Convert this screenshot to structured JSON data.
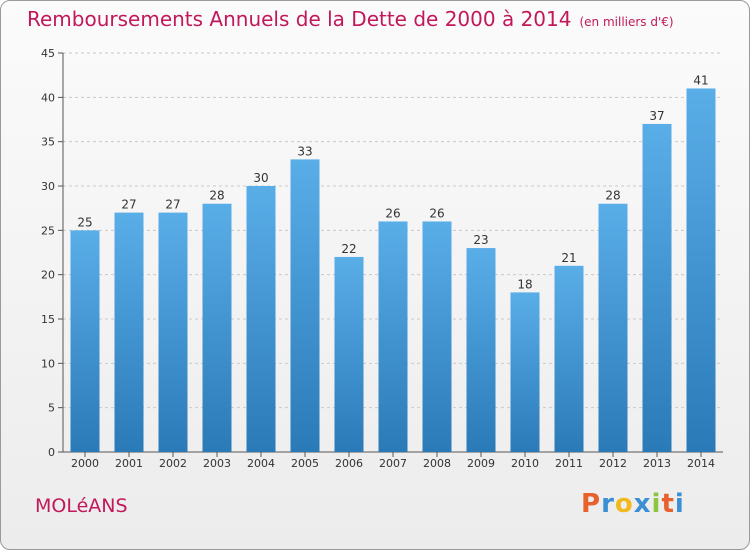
{
  "chart_data": {
    "type": "bar",
    "title": "Remboursements Annuels de la Dette de 2000 à 2014",
    "unit_note": "(en milliers d'€)",
    "categories": [
      "2000",
      "2001",
      "2002",
      "2003",
      "2004",
      "2005",
      "2006",
      "2007",
      "2008",
      "2009",
      "2010",
      "2011",
      "2012",
      "2013",
      "2014"
    ],
    "values": [
      25,
      27,
      27,
      28,
      30,
      33,
      22,
      26,
      26,
      23,
      18,
      21,
      28,
      37,
      41
    ],
    "xlabel": "",
    "ylabel": "",
    "ylim": [
      0,
      45
    ],
    "yticks": [
      0,
      5,
      10,
      15,
      20,
      25,
      30,
      35,
      40,
      45
    ],
    "grid": true,
    "bar_color_top": "#5aaee8",
    "bar_color_bottom": "#2a7ab8"
  },
  "footer": {
    "commune": "MOLéANS",
    "logo_letters": [
      "P",
      "r",
      "o",
      "x",
      "i",
      "t",
      "i"
    ],
    "logo_colors": [
      "#e8602c",
      "#3b8fd4",
      "#f2b91c",
      "#3b8fd4",
      "#8cc63f",
      "#e8602c",
      "#3b8fd4"
    ]
  }
}
